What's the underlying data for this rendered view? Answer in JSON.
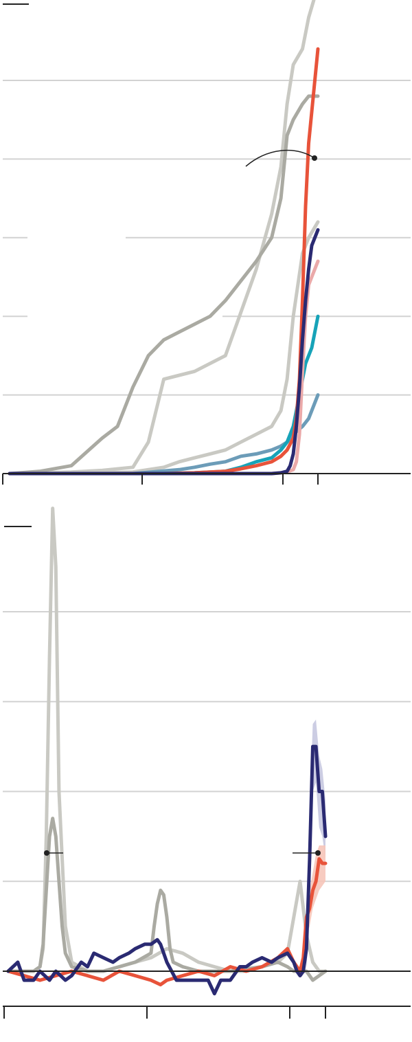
{
  "chart_data": [
    {
      "type": "line",
      "title": "",
      "xlabel": "",
      "ylabel": "",
      "xlim": [
        0,
        100
      ],
      "ylim": [
        0,
        600
      ],
      "y_gridlines": [
        100,
        200,
        300,
        400,
        500
      ],
      "x_ticks": [
        0,
        45,
        90,
        100
      ],
      "grid": true,
      "legend": "none",
      "colors": {
        "light_gray": "#c9c9c3",
        "mid_gray": "#aaaaa2",
        "red": "#e8533a",
        "pink": "#eaa9a9",
        "navy": "#2a2a72",
        "teal": "#17a3b8",
        "steel_blue": "#6c9cb8"
      },
      "series": [
        {
          "color_key": "light_gray",
          "x": [
            0,
            10,
            20,
            30,
            40,
            45,
            50,
            60,
            70,
            80,
            85,
            88,
            90,
            92,
            95,
            97,
            100
          ],
          "y": [
            0,
            1,
            2,
            4,
            8,
            40,
            120,
            130,
            150,
            260,
            330,
            390,
            470,
            520,
            540,
            580,
            620
          ]
        },
        {
          "color_key": "mid_gray",
          "x": [
            0,
            10,
            20,
            30,
            35,
            40,
            45,
            50,
            60,
            65,
            70,
            80,
            85,
            88,
            90,
            92,
            95,
            97,
            100
          ],
          "y": [
            0,
            3,
            10,
            45,
            60,
            110,
            150,
            170,
            190,
            200,
            220,
            270,
            300,
            350,
            430,
            450,
            470,
            480,
            480
          ]
        },
        {
          "color_key": "light_gray",
          "x": [
            0,
            20,
            40,
            50,
            55,
            60,
            65,
            70,
            75,
            80,
            85,
            88,
            90,
            92,
            95,
            97,
            100
          ],
          "y": [
            0,
            0,
            2,
            8,
            15,
            20,
            25,
            30,
            40,
            50,
            60,
            80,
            120,
            200,
            280,
            300,
            320
          ]
        },
        {
          "color_key": "steel_blue",
          "x": [
            0,
            40,
            55,
            60,
            65,
            70,
            75,
            80,
            85,
            88,
            90,
            92,
            95,
            97,
            100
          ],
          "y": [
            0,
            0,
            5,
            8,
            12,
            15,
            22,
            25,
            30,
            35,
            40,
            50,
            60,
            70,
            100
          ]
        },
        {
          "color_key": "teal",
          "x": [
            0,
            50,
            60,
            70,
            75,
            80,
            85,
            88,
            90,
            92,
            94,
            96,
            98,
            100
          ],
          "y": [
            0,
            0,
            1,
            3,
            8,
            15,
            20,
            30,
            40,
            60,
            100,
            140,
            160,
            200
          ]
        },
        {
          "color_key": "pink",
          "x": [
            0,
            70,
            80,
            85,
            88,
            90,
            92,
            93,
            94,
            95,
            96,
            97,
            98,
            100
          ],
          "y": [
            0,
            0,
            0,
            0,
            1,
            2,
            5,
            15,
            50,
            130,
            200,
            240,
            250,
            270
          ]
        },
        {
          "color_key": "red",
          "x": [
            0,
            50,
            60,
            70,
            75,
            80,
            85,
            88,
            90,
            92,
            93,
            94,
            95,
            96,
            97,
            98,
            100
          ],
          "y": [
            0,
            0,
            1,
            3,
            6,
            10,
            15,
            22,
            30,
            45,
            70,
            120,
            220,
            340,
            420,
            460,
            540
          ]
        },
        {
          "color_key": "navy",
          "x": [
            0,
            70,
            80,
            85,
            88,
            90,
            91,
            92,
            93,
            94,
            95,
            96,
            97,
            98,
            100
          ],
          "y": [
            0,
            0,
            0,
            0,
            1,
            3,
            10,
            25,
            60,
            110,
            170,
            220,
            260,
            290,
            310
          ]
        }
      ]
    },
    {
      "type": "line",
      "title": "",
      "xlabel": "",
      "ylabel": "",
      "xlim": [
        0,
        100
      ],
      "ylim": [
        -20,
        100
      ],
      "y_gridlines": [
        0,
        20,
        40,
        60,
        80
      ],
      "x_ticks": [
        0,
        45,
        90,
        100
      ],
      "grid": true,
      "legend": "none",
      "colors": {
        "light_gray": "#c9c9c3",
        "mid_gray": "#aaaaa2",
        "red": "#e8533a",
        "navy": "#2a2a72",
        "navy_band": "#c7c8e0",
        "red_band": "#f6c5b9"
      },
      "series": [
        {
          "color_key": "light_gray",
          "x": [
            0,
            5,
            8,
            10,
            11,
            12,
            13,
            14,
            15,
            16,
            18,
            20,
            25,
            30,
            35,
            40,
            45,
            50,
            55,
            60,
            65,
            70,
            75,
            80,
            85,
            88,
            90,
            92,
            94,
            96,
            98,
            100
          ],
          "y": [
            0,
            0,
            0,
            1,
            5,
            30,
            70,
            103,
            90,
            40,
            10,
            2,
            0,
            0,
            1,
            2,
            3,
            5,
            4,
            2,
            1,
            0,
            0,
            1,
            2,
            4,
            12,
            20,
            8,
            2,
            0,
            0
          ]
        },
        {
          "color_key": "mid_gray",
          "x": [
            0,
            8,
            10,
            11,
            12,
            13,
            14,
            15,
            16,
            17,
            18,
            20,
            25,
            30,
            35,
            40,
            45,
            46,
            47,
            48,
            49,
            50,
            51,
            52,
            55,
            60,
            70,
            80,
            85,
            88,
            90,
            92,
            94,
            96,
            98,
            100
          ],
          "y": [
            0,
            0,
            1,
            6,
            18,
            30,
            34,
            30,
            20,
            10,
            4,
            1,
            0,
            0,
            1,
            2,
            4,
            10,
            15,
            18,
            17,
            12,
            5,
            2,
            1,
            0,
            0,
            1,
            2,
            1,
            0,
            0,
            0,
            -2,
            -1,
            0
          ]
        },
        {
          "color_key": "red",
          "x": [
            0,
            5,
            10,
            15,
            20,
            25,
            30,
            35,
            40,
            45,
            48,
            50,
            55,
            60,
            65,
            70,
            75,
            80,
            85,
            88,
            90,
            92,
            93,
            94,
            95,
            96,
            97,
            98,
            99,
            100
          ],
          "y": [
            0,
            -1,
            -2,
            -1,
            0,
            -1,
            -2,
            0,
            -1,
            -2,
            -3,
            -2,
            -1,
            0,
            -1,
            1,
            0,
            1,
            3,
            5,
            2,
            0,
            3,
            12,
            14,
            18,
            20,
            25,
            24,
            24
          ]
        },
        {
          "color_key": "navy",
          "x": [
            0,
            3,
            5,
            8,
            10,
            13,
            15,
            18,
            20,
            23,
            25,
            27,
            30,
            33,
            35,
            38,
            40,
            43,
            45,
            47,
            48,
            50,
            53,
            55,
            58,
            60,
            63,
            65,
            67,
            70,
            73,
            75,
            77,
            80,
            83,
            85,
            88,
            90,
            91,
            92,
            93,
            94,
            95,
            96,
            97,
            98,
            99,
            100
          ],
          "y": [
            0,
            2,
            -2,
            -2,
            0,
            -2,
            0,
            -2,
            -1,
            2,
            1,
            4,
            3,
            2,
            3,
            4,
            5,
            6,
            6,
            7,
            6,
            2,
            -2,
            -2,
            -2,
            -2,
            -2,
            -5,
            -2,
            -2,
            1,
            1,
            2,
            3,
            2,
            3,
            4,
            2,
            0,
            -1,
            0,
            5,
            25,
            50,
            50,
            40,
            40,
            30
          ]
        }
      ],
      "bands": [
        {
          "color_key": "navy_band",
          "x": [
            94,
            95,
            96,
            97,
            98,
            99,
            100
          ],
          "upper": [
            10,
            35,
            55,
            56,
            48,
            45,
            38
          ],
          "lower": [
            0,
            15,
            40,
            42,
            32,
            30,
            25
          ]
        },
        {
          "color_key": "red_band",
          "x": [
            94,
            95,
            96,
            97,
            98,
            99,
            100
          ],
          "upper": [
            15,
            18,
            22,
            26,
            28,
            28,
            28
          ],
          "lower": [
            8,
            10,
            14,
            16,
            18,
            19,
            20
          ]
        }
      ]
    }
  ],
  "annotations": [
    {
      "chart": 0,
      "x": 100,
      "y": 480
    },
    {
      "chart": 1,
      "x": 13,
      "y": 33
    },
    {
      "chart": 1,
      "x": 100,
      "y": 33
    }
  ]
}
